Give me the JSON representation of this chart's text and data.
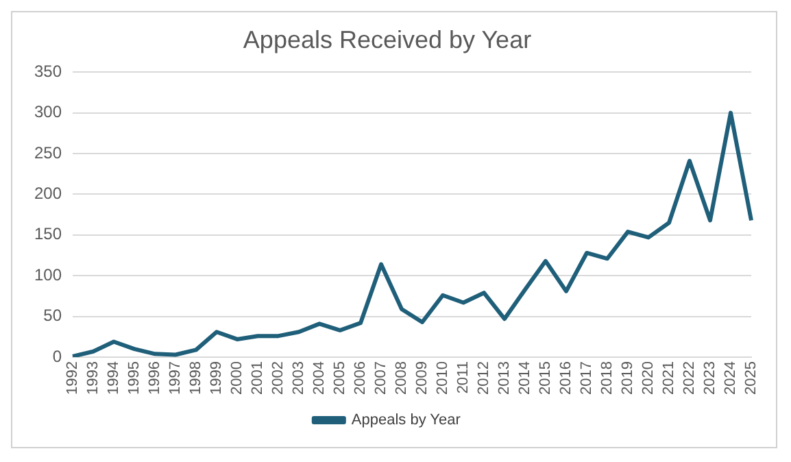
{
  "chart_data": {
    "type": "line",
    "title": "Appeals Received by Year",
    "categories": [
      "1992",
      "1993",
      "1994",
      "1995",
      "1996",
      "1997",
      "1998",
      "1999",
      "2000",
      "2001",
      "2002",
      "2003",
      "2004",
      "2005",
      "2006",
      "2007",
      "2008",
      "2009",
      "2010",
      "2011",
      "2012",
      "2013",
      "2014",
      "2015",
      "2016",
      "2017",
      "2018",
      "2019",
      "2020",
      "2021",
      "2022",
      "2023",
      "2024",
      "2025"
    ],
    "series": [
      {
        "name": "Appeals by Year",
        "color": "#1f5f7a",
        "values": [
          1,
          7,
          19,
          10,
          4,
          3,
          9,
          31,
          22,
          26,
          26,
          31,
          41,
          33,
          42,
          114,
          59,
          43,
          76,
          67,
          79,
          47,
          83,
          118,
          81,
          128,
          121,
          154,
          147,
          165,
          241,
          168,
          300,
          168
        ]
      }
    ],
    "ylim": [
      0,
      350
    ],
    "yticks": [
      0,
      50,
      100,
      150,
      200,
      250,
      300,
      350
    ],
    "grid": "y",
    "legend": "bottom",
    "marker": "none",
    "line_style": "solid"
  }
}
